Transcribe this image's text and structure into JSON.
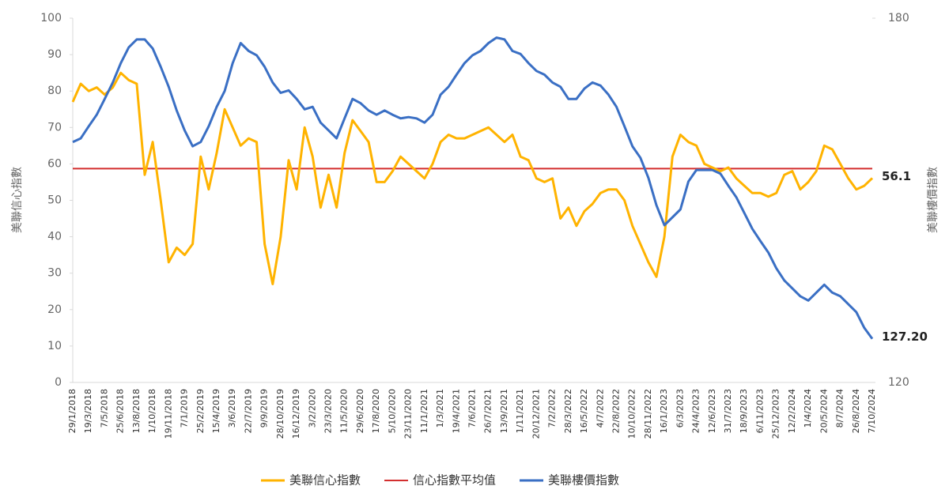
{
  "chart_data": {
    "type": "line",
    "categories": [
      "29/1/2018",
      null,
      "19/3/2018",
      null,
      "7/5/2018",
      null,
      "25/6/2018",
      null,
      "13/8/2018",
      null,
      "1/10/2018",
      null,
      "19/11/2018",
      null,
      "7/1/2019",
      null,
      "25/2/2019",
      null,
      "15/4/2019",
      null,
      "3/6/2019",
      null,
      "22/7/2019",
      null,
      "9/9/2019",
      null,
      "28/10/2019",
      null,
      "16/12/2019",
      null,
      "3/2/2020",
      null,
      "23/3/2020",
      null,
      "11/5/2020",
      null,
      "29/6/2020",
      null,
      "17/8/2020",
      null,
      "5/10/2020",
      null,
      "23/11/2020",
      null,
      "11/1/2021",
      null,
      "1/3/2021",
      null,
      "19/4/2021",
      null,
      "7/6/2021",
      null,
      "26/7/2021",
      null,
      "13/9/2021",
      null,
      "1/11/2021",
      null,
      "20/12/2021",
      null,
      "7/2/2022",
      null,
      "28/3/2022",
      null,
      "16/5/2022",
      null,
      "4/7/2022",
      null,
      "22/8/2022",
      null,
      "10/10/2022",
      null,
      "28/11/2022",
      null,
      "16/1/2023",
      null,
      "6/3/2023",
      null,
      "24/4/2023",
      null,
      "12/6/2023",
      null,
      "31/7/2023",
      null,
      "18/9/2023",
      null,
      "6/11/2023",
      null,
      "25/12/2023",
      null,
      "12/2/2024",
      null,
      "1/4/2024",
      null,
      "20/5/2024",
      null,
      "8/7/2024",
      null,
      "26/8/2024",
      null,
      "7/10/2024"
    ],
    "series": [
      {
        "name": "美聯信心指數",
        "color": "#ffb300",
        "values": [
          77,
          82,
          80,
          81,
          79,
          81,
          85,
          83,
          82,
          57,
          66,
          50,
          33,
          37,
          35,
          38,
          62,
          53,
          63,
          75,
          70,
          65,
          67,
          66,
          38,
          27,
          40,
          61,
          53,
          70,
          62,
          48,
          57,
          48,
          63,
          72,
          69,
          66,
          55,
          55,
          58,
          62,
          60,
          58,
          56,
          60,
          66,
          68,
          67,
          67,
          68,
          69,
          70,
          68,
          66,
          68,
          62,
          61,
          56,
          55,
          56,
          45,
          48,
          43,
          47,
          49,
          52,
          53,
          53,
          50,
          43,
          38,
          33,
          29,
          40,
          62,
          68,
          66,
          65,
          60,
          59,
          58,
          59,
          56,
          54,
          52,
          52,
          51,
          52,
          57,
          58,
          53,
          55,
          58,
          65,
          64,
          60,
          56,
          53,
          54,
          56.1
        ]
      },
      {
        "name": "美聯樓價指數",
        "color": "#3a6fc4",
        "axis": "y2",
        "values": [
          159.6,
          160.2,
          162.2,
          164.1,
          166.7,
          169.4,
          172.6,
          175.2,
          176.5,
          176.5,
          175,
          172,
          168.7,
          164.8,
          161.5,
          158.9,
          159.6,
          162.2,
          165.4,
          168,
          172.6,
          175.9,
          174.6,
          173.9,
          172,
          169.4,
          167.7,
          168.1,
          166.7,
          165,
          165.4,
          162.8,
          161.5,
          160.2,
          163.5,
          166.7,
          166,
          164.8,
          164.1,
          164.8,
          164.1,
          163.5,
          163.7,
          163.5,
          162.8,
          164.1,
          167.4,
          168.7,
          170.7,
          172.6,
          173.9,
          174.6,
          175.9,
          176.8,
          176.5,
          174.6,
          174.1,
          172.6,
          171.3,
          170.7,
          169.4,
          168.7,
          166.7,
          166.7,
          168.4,
          169.4,
          168.9,
          167.4,
          165.4,
          162.2,
          158.9,
          157,
          153.7,
          149.2,
          145.9,
          147.2,
          148.5,
          153.1,
          155,
          155,
          155,
          154.4,
          152.4,
          150.5,
          147.9,
          145.3,
          143.3,
          141.4,
          138.8,
          136.8,
          135.5,
          134.2,
          133.5,
          134.8,
          136.1,
          134.8,
          134.2,
          132.9,
          131.6,
          129,
          127.2
        ],
        "value_labels": [
          null,
          null,
          null,
          null,
          null,
          null,
          null,
          null,
          null,
          null,
          null,
          null,
          null,
          null,
          null,
          null,
          null,
          null,
          null,
          null,
          null,
          null,
          null,
          null,
          null,
          null,
          null,
          null,
          null,
          null,
          null,
          null,
          null,
          null,
          null,
          null,
          null,
          null,
          null,
          null,
          null,
          null,
          null,
          null,
          null,
          null,
          null,
          null,
          null,
          null,
          null,
          null,
          null,
          null,
          null,
          null,
          null,
          null,
          null,
          null,
          null,
          null,
          null,
          null,
          null,
          null,
          null,
          null,
          null,
          null,
          null,
          null,
          null,
          null,
          null,
          null,
          null,
          null,
          null,
          null,
          null,
          null,
          null,
          null,
          null,
          null,
          null,
          null,
          null,
          null,
          null,
          null,
          null,
          null,
          null,
          null,
          null,
          null,
          null,
          null,
          "127.20"
        ]
      }
    ],
    "reference_line": {
      "name": "信心指數平均值",
      "color": "#d32f2f",
      "value": 58.7
    },
    "y_label": "美聯信心指數",
    "y2_label": "美聯樓價指數",
    "ylim": [
      0,
      100
    ],
    "yticks": [
      0,
      10,
      20,
      30,
      40,
      50,
      60,
      70,
      80,
      90,
      100
    ],
    "y2lim": [
      120,
      180
    ],
    "y2ticks": [
      120,
      180
    ],
    "legend": "bottom"
  }
}
